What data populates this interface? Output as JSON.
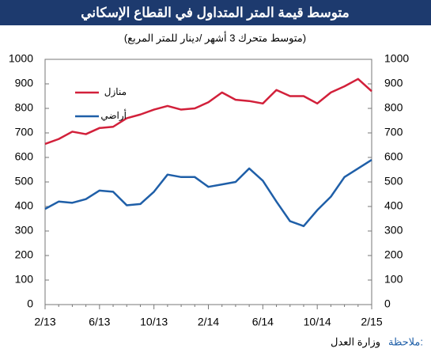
{
  "chart_data": {
    "type": "line",
    "title": "متوسط قيمة المتر المتداول في القطاع الإسكاني",
    "subtitle": "(متوسط متحرك 3 أشهر /دينار للمتر المربع)",
    "categories": [
      "2/13",
      null,
      null,
      null,
      "6/13",
      null,
      null,
      null,
      "10/13",
      null,
      null,
      null,
      "2/14",
      null,
      null,
      null,
      "6/14",
      null,
      null,
      null,
      "10/14",
      null,
      null,
      null,
      "2/15"
    ],
    "series": [
      {
        "name": "منازل",
        "color": "#d2203a",
        "values": [
          655,
          675,
          705,
          695,
          720,
          725,
          760,
          775,
          795,
          810,
          795,
          800,
          825,
          865,
          835,
          830,
          820,
          875,
          850,
          850,
          820,
          865,
          890,
          920,
          870
        ]
      },
      {
        "name": "أراضي",
        "color": "#1f5fa8",
        "values": [
          390,
          420,
          415,
          430,
          465,
          460,
          405,
          410,
          460,
          530,
          520,
          520,
          480,
          490,
          500,
          555,
          505,
          420,
          340,
          320,
          385,
          440,
          520,
          555,
          590
        ]
      }
    ],
    "ylim": [
      0,
      1000
    ],
    "yticks": [
      0,
      100,
      200,
      300,
      400,
      500,
      600,
      700,
      800,
      900,
      1000
    ],
    "y2lim": [
      0,
      1000
    ],
    "y2ticks": [
      0,
      100,
      200,
      300,
      400,
      500,
      600,
      700,
      800,
      900,
      1000
    ],
    "grid": false,
    "note_label": "ملاحظة:",
    "source": "وزارة العدل"
  }
}
